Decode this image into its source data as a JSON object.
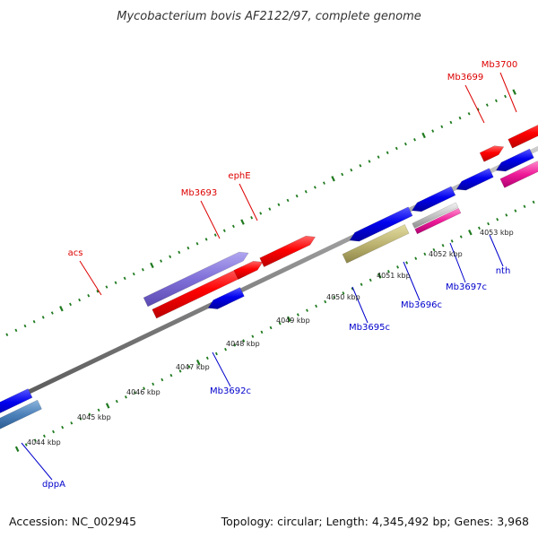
{
  "title": "Mycobacterium bovis AF2122/97, complete genome",
  "footer": {
    "accession": "Accession: NC_002945",
    "summary": "Topology: circular; Length: 4,345,492 bp; Genes: 3,968"
  },
  "colors": {
    "background": "#ffffff",
    "backbone": "#8a8a8a",
    "tick": "#1f7a1f",
    "forward_label": "#dd0000",
    "reverse_label": "#0000cc"
  },
  "scale_labels": [
    "4044 kbp",
    "4045 kbp",
    "4046 kbp",
    "4047 kbp",
    "4048 kbp",
    "4049 kbp",
    "4050 kbp",
    "4051 kbp",
    "4052 kbp",
    "4053 kbp"
  ],
  "genes": [
    {
      "name": "acs",
      "strand": "forward",
      "labeled": true,
      "color": "#ff0000"
    },
    {
      "name": "Mb3693",
      "strand": "forward",
      "labeled": true,
      "color": "#ff0000"
    },
    {
      "name": "ephE",
      "strand": "forward",
      "labeled": true,
      "color": "#ff0000"
    },
    {
      "name": "Mb3699",
      "strand": "forward",
      "labeled": true,
      "color": "#ff0000"
    },
    {
      "name": "Mb3700",
      "strand": "forward",
      "labeled": true,
      "color": "#ff0000"
    },
    {
      "name": "dppA",
      "strand": "reverse",
      "labeled": true,
      "color": "#0000ee"
    },
    {
      "name": "Mb3692c",
      "strand": "reverse",
      "labeled": true,
      "color": "#0000ee"
    },
    {
      "name": "Mb3695c",
      "strand": "reverse",
      "labeled": true,
      "color": "#0000ee"
    },
    {
      "name": "Mb3696c",
      "strand": "reverse",
      "labeled": true,
      "color": "#0000ee"
    },
    {
      "name": "Mb3697c",
      "strand": "reverse",
      "labeled": true,
      "color": "#0000ee"
    },
    {
      "name": "nth",
      "strand": "reverse",
      "labeled": true,
      "color": "#0000ee"
    }
  ]
}
